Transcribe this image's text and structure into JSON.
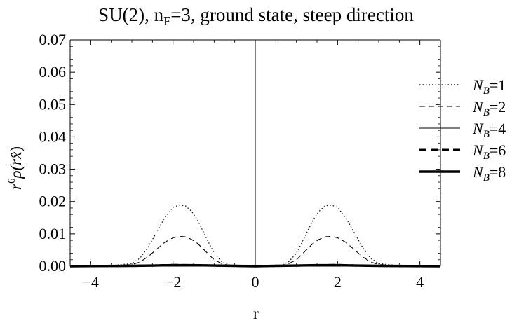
{
  "chart_data": {
    "type": "line",
    "title": "SU(2), n_F=3, ground state, steep direction",
    "title_main": "SU(2), n",
    "title_sub": "F",
    "title_rest": "=3, ground state, steep direction",
    "xlabel": "r",
    "ylabel_r": "r",
    "ylabel_exp": "6",
    "ylabel_rho": "ρ(r",
    "ylabel_xhat": "x̂",
    "ylabel_close": ")",
    "xlim": [
      -4.5,
      4.5
    ],
    "ylim": [
      0,
      0.07
    ],
    "xticks": [
      -4,
      -2,
      0,
      2,
      4
    ],
    "xtick_labels": [
      "−4",
      "−2",
      "0",
      "2",
      "4"
    ],
    "yticks": [
      0,
      0.01,
      0.02,
      0.03,
      0.04,
      0.05,
      0.06,
      0.07
    ],
    "ytick_labels": [
      "0.00",
      "0.01",
      "0.02",
      "0.03",
      "0.04",
      "0.05",
      "0.06",
      "0.07"
    ],
    "legend_position": "top-right",
    "series": [
      {
        "name": "N_B=1",
        "legend_n": "N",
        "legend_sub": "B",
        "legend_eq": "=1",
        "style": "dotted",
        "width": 1.2,
        "x": [
          -4.5,
          -3.5,
          -3.0,
          -2.8,
          -2.6,
          -2.4,
          -2.2,
          -2.0,
          -1.85,
          -1.7,
          -1.55,
          -1.4,
          -1.2,
          -1.0,
          -0.8,
          -0.6,
          -0.3,
          0.0,
          0.3,
          0.6,
          0.8,
          1.0,
          1.2,
          1.4,
          1.55,
          1.7,
          1.85,
          2.0,
          2.2,
          2.4,
          2.6,
          2.8,
          3.0,
          3.5,
          4.5
        ],
        "y": [
          0.0,
          0.0002,
          0.0008,
          0.0025,
          0.006,
          0.0105,
          0.015,
          0.0182,
          0.0189,
          0.0187,
          0.017,
          0.0142,
          0.009,
          0.004,
          0.0012,
          0.0003,
          0.0,
          0.0,
          0.0,
          0.0003,
          0.0012,
          0.004,
          0.009,
          0.0142,
          0.017,
          0.0187,
          0.0189,
          0.0182,
          0.015,
          0.0105,
          0.006,
          0.0025,
          0.0008,
          0.0002,
          0.0
        ]
      },
      {
        "name": "N_B=2",
        "legend_n": "N",
        "legend_sub": "B",
        "legend_eq": "=2",
        "style": "dashed",
        "width": 1.1,
        "x": [
          -4.5,
          -3.5,
          -3.0,
          -2.8,
          -2.6,
          -2.4,
          -2.2,
          -2.0,
          -1.85,
          -1.7,
          -1.55,
          -1.4,
          -1.2,
          -1.0,
          -0.8,
          -0.6,
          -0.3,
          0.0,
          0.3,
          0.6,
          0.8,
          1.0,
          1.2,
          1.4,
          1.55,
          1.7,
          1.85,
          2.0,
          2.2,
          2.4,
          2.6,
          2.8,
          3.0,
          3.5,
          4.5
        ],
        "y": [
          0.0,
          0.0001,
          0.0005,
          0.0013,
          0.003,
          0.0052,
          0.0074,
          0.0088,
          0.0092,
          0.0091,
          0.0083,
          0.007,
          0.0045,
          0.002,
          0.0007,
          0.0002,
          0.0,
          0.0,
          0.0,
          0.0002,
          0.0007,
          0.002,
          0.0045,
          0.007,
          0.0083,
          0.0091,
          0.0092,
          0.0088,
          0.0074,
          0.0052,
          0.003,
          0.0013,
          0.0005,
          0.0001,
          0.0
        ]
      },
      {
        "name": "N_B=4",
        "legend_n": "N",
        "legend_sub": "B",
        "legend_eq": "=4",
        "style": "solid",
        "width": 1.1,
        "x": [
          -4.5,
          -3.0,
          -2.5,
          -2.0,
          -1.5,
          -1.0,
          -0.5,
          0.0,
          0.5,
          1.0,
          1.5,
          2.0,
          2.5,
          3.0,
          4.5
        ],
        "y": [
          0.0,
          0.0001,
          0.0003,
          0.0005,
          0.0004,
          0.0002,
          0.0001,
          0.0,
          0.0001,
          0.0002,
          0.0004,
          0.0005,
          0.0003,
          0.0001,
          0.0
        ]
      },
      {
        "name": "N_B=6",
        "legend_n": "N",
        "legend_sub": "B",
        "legend_eq": "=6",
        "style": "dashed-thick",
        "width": 3,
        "x": [
          -4.5,
          -3.0,
          -2.5,
          -2.0,
          -1.5,
          -1.0,
          -0.5,
          0.0,
          0.5,
          1.0,
          1.5,
          2.0,
          2.5,
          3.0,
          4.5
        ],
        "y": [
          0.0,
          0.0001,
          0.0002,
          0.0004,
          0.0003,
          0.0002,
          0.0001,
          0.0,
          0.0001,
          0.0002,
          0.0003,
          0.0004,
          0.0002,
          0.0001,
          0.0
        ]
      },
      {
        "name": "N_B=8",
        "legend_n": "N",
        "legend_sub": "B",
        "legend_eq": "=8",
        "style": "solid-thick",
        "width": 3.4,
        "x": [
          -4.5,
          -3.0,
          -2.5,
          -2.0,
          -1.5,
          -1.0,
          -0.5,
          0.0,
          0.5,
          1.0,
          1.5,
          2.0,
          2.5,
          3.0,
          4.5
        ],
        "y": [
          0.0,
          0.0001,
          0.0002,
          0.0003,
          0.0003,
          0.0002,
          0.0001,
          0.0,
          0.0001,
          0.0002,
          0.0003,
          0.0003,
          0.0002,
          0.0001,
          0.0
        ]
      }
    ]
  }
}
